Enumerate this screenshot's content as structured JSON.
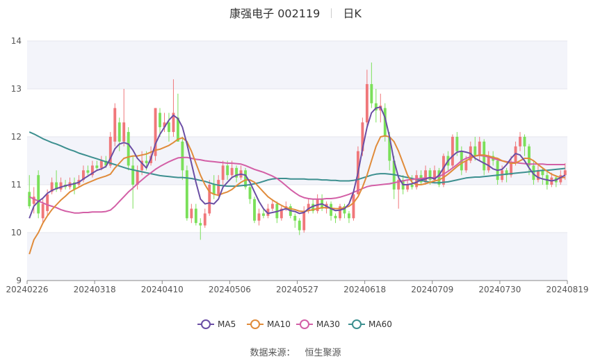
{
  "header": {
    "stock": "康强电子 002119",
    "period": "日K"
  },
  "footer": {
    "source_label": "数据来源：",
    "source_value": "恒生聚源"
  },
  "colors": {
    "up": "#f0777a",
    "down": "#7be05a",
    "ma5": "#6a4ea4",
    "ma10": "#e08b3a",
    "ma30": "#d35fa6",
    "ma60": "#3c8f8f",
    "grid_band": "#f3f4fa"
  },
  "chart_data": {
    "type": "candlestick",
    "ylim": [
      9,
      14
    ],
    "yticks": [
      9,
      10,
      11,
      12,
      13,
      14
    ],
    "xticks": [
      "20240226",
      "20240318",
      "20240410",
      "20240506",
      "20240527",
      "20240618",
      "20240709",
      "20240730",
      "20240819"
    ],
    "n_days": 120,
    "legend": [
      "MA5",
      "MA10",
      "MA30",
      "MA60"
    ],
    "candles": [
      [
        10.85,
        10.55,
        11.2,
        10.5
      ],
      [
        10.6,
        10.75,
        10.95,
        10.4
      ],
      [
        11.2,
        10.4,
        11.3,
        10.3
      ],
      [
        10.3,
        10.6,
        10.7,
        10.2
      ],
      [
        10.45,
        10.8,
        10.9,
        10.35
      ],
      [
        10.85,
        11.05,
        11.15,
        10.8
      ],
      [
        11.05,
        10.9,
        11.3,
        10.85
      ],
      [
        10.9,
        11.05,
        11.15,
        10.85
      ],
      [
        11.0,
        10.95,
        11.1,
        10.9
      ],
      [
        10.95,
        11.05,
        11.15,
        10.9
      ],
      [
        11.05,
        10.9,
        11.15,
        10.8
      ],
      [
        11.0,
        11.1,
        11.2,
        10.95
      ],
      [
        11.1,
        11.3,
        11.4,
        11.05
      ],
      [
        11.3,
        11.25,
        11.4,
        11.2
      ],
      [
        11.2,
        11.4,
        11.5,
        11.15
      ],
      [
        11.4,
        11.35,
        11.5,
        11.3
      ],
      [
        11.35,
        11.5,
        11.6,
        11.3
      ],
      [
        11.5,
        11.4,
        11.6,
        11.35
      ],
      [
        11.4,
        12.0,
        12.1,
        11.35
      ],
      [
        11.9,
        12.6,
        12.7,
        11.8
      ],
      [
        12.3,
        11.9,
        12.4,
        11.7
      ],
      [
        11.9,
        12.3,
        13.0,
        11.8
      ],
      [
        12.1,
        11.4,
        12.2,
        11.3
      ],
      [
        11.4,
        11.0,
        11.6,
        10.5
      ],
      [
        11.0,
        11.3,
        11.4,
        10.9
      ],
      [
        11.3,
        11.5,
        11.7,
        11.2
      ],
      [
        11.5,
        11.45,
        11.7,
        11.3
      ],
      [
        11.45,
        11.6,
        11.8,
        11.4
      ],
      [
        11.6,
        12.6,
        12.6,
        11.5
      ],
      [
        12.5,
        12.2,
        12.6,
        12.0
      ],
      [
        12.2,
        12.3,
        12.5,
        12.1
      ],
      [
        12.3,
        12.1,
        12.5,
        11.9
      ],
      [
        12.1,
        12.5,
        13.2,
        12.0
      ],
      [
        12.4,
        11.9,
        12.9,
        11.9
      ],
      [
        11.9,
        11.3,
        12.0,
        11.1
      ],
      [
        11.3,
        10.3,
        11.4,
        10.25
      ],
      [
        10.3,
        10.5,
        10.6,
        10.2
      ],
      [
        10.5,
        10.2,
        10.6,
        10.15
      ],
      [
        10.2,
        10.15,
        10.3,
        9.85
      ],
      [
        10.15,
        10.4,
        10.5,
        10.1
      ],
      [
        10.4,
        11.0,
        11.1,
        10.35
      ],
      [
        11.0,
        10.8,
        11.2,
        10.7
      ],
      [
        10.8,
        11.1,
        11.2,
        10.75
      ],
      [
        11.1,
        11.4,
        11.5,
        11.0
      ],
      [
        11.4,
        11.2,
        11.5,
        11.1
      ],
      [
        11.2,
        11.35,
        11.5,
        11.15
      ],
      [
        11.35,
        11.15,
        11.4,
        11.05
      ],
      [
        11.15,
        11.3,
        11.4,
        11.1
      ],
      [
        11.3,
        10.95,
        11.35,
        10.9
      ],
      [
        10.95,
        10.7,
        11.0,
        10.6
      ],
      [
        10.7,
        10.25,
        10.75,
        10.2
      ],
      [
        10.25,
        10.4,
        10.5,
        10.15
      ],
      [
        10.4,
        10.35,
        10.5,
        10.3
      ],
      [
        10.35,
        10.5,
        10.6,
        10.3
      ],
      [
        10.5,
        10.6,
        10.7,
        10.45
      ],
      [
        10.6,
        10.3,
        10.65,
        10.2
      ],
      [
        10.3,
        10.5,
        10.55,
        10.25
      ],
      [
        10.5,
        10.55,
        10.65,
        10.45
      ],
      [
        10.55,
        10.35,
        10.6,
        10.3
      ],
      [
        10.35,
        10.25,
        10.4,
        10.1
      ],
      [
        10.25,
        10.05,
        10.3,
        9.95
      ],
      [
        10.05,
        10.45,
        10.55,
        10.0
      ],
      [
        10.45,
        10.6,
        10.7,
        10.4
      ],
      [
        10.6,
        10.45,
        10.7,
        10.4
      ],
      [
        10.45,
        10.7,
        10.8,
        10.4
      ],
      [
        10.7,
        10.5,
        10.8,
        10.45
      ],
      [
        10.5,
        10.6,
        10.65,
        10.4
      ],
      [
        10.6,
        10.35,
        10.65,
        10.25
      ],
      [
        10.35,
        10.3,
        10.4,
        10.2
      ],
      [
        10.3,
        10.55,
        10.6,
        10.25
      ],
      [
        10.55,
        10.4,
        10.6,
        10.3
      ],
      [
        10.4,
        10.3,
        10.45,
        10.2
      ],
      [
        10.3,
        10.8,
        10.9,
        10.25
      ],
      [
        10.8,
        11.7,
        11.8,
        10.8
      ],
      [
        11.7,
        12.3,
        12.4,
        11.6
      ],
      [
        12.3,
        13.1,
        13.4,
        12.2
      ],
      [
        13.1,
        12.7,
        13.55,
        12.6
      ],
      [
        12.7,
        12.55,
        13.0,
        12.3
      ],
      [
        12.55,
        12.65,
        12.9,
        12.3
      ],
      [
        12.6,
        12.0,
        12.7,
        11.9
      ],
      [
        12.0,
        11.5,
        12.1,
        11.3
      ],
      [
        11.5,
        10.9,
        11.6,
        10.7
      ],
      [
        10.9,
        11.1,
        11.2,
        10.5
      ],
      [
        11.1,
        10.9,
        11.2,
        10.8
      ],
      [
        10.9,
        11.0,
        11.1,
        10.85
      ],
      [
        11.0,
        10.95,
        11.2,
        10.9
      ],
      [
        10.95,
        11.2,
        11.3,
        10.9
      ],
      [
        11.2,
        11.05,
        11.3,
        11.0
      ],
      [
        11.05,
        11.3,
        11.4,
        11.0
      ],
      [
        11.3,
        11.1,
        11.35,
        11.0
      ],
      [
        11.1,
        11.3,
        11.4,
        11.05
      ],
      [
        11.3,
        11.0,
        11.35,
        10.95
      ],
      [
        11.0,
        11.6,
        11.65,
        10.95
      ],
      [
        11.6,
        11.4,
        11.7,
        11.3
      ],
      [
        11.4,
        12.0,
        12.05,
        11.35
      ],
      [
        12.0,
        11.7,
        12.1,
        11.6
      ],
      [
        11.7,
        11.3,
        11.8,
        11.2
      ],
      [
        11.3,
        11.5,
        11.6,
        11.25
      ],
      [
        11.5,
        11.8,
        11.9,
        11.45
      ],
      [
        11.8,
        11.6,
        12.0,
        11.5
      ],
      [
        11.6,
        11.9,
        12.0,
        11.5
      ],
      [
        11.9,
        11.3,
        11.95,
        11.2
      ],
      [
        11.3,
        11.6,
        11.7,
        11.25
      ],
      [
        11.6,
        11.5,
        11.7,
        11.4
      ],
      [
        11.5,
        11.1,
        11.55,
        11.0
      ],
      [
        11.1,
        11.3,
        11.4,
        11.05
      ],
      [
        11.3,
        11.2,
        11.35,
        11.05
      ],
      [
        11.2,
        11.45,
        11.6,
        11.15
      ],
      [
        11.45,
        11.8,
        11.9,
        11.4
      ],
      [
        11.8,
        12.0,
        12.1,
        11.7
      ],
      [
        12.0,
        11.8,
        12.05,
        11.6
      ],
      [
        11.8,
        11.4,
        11.85,
        11.2
      ],
      [
        11.4,
        11.1,
        11.5,
        11.0
      ],
      [
        11.1,
        11.3,
        11.4,
        11.05
      ],
      [
        11.3,
        11.2,
        11.35,
        11.0
      ],
      [
        11.2,
        11.0,
        11.3,
        10.9
      ],
      [
        11.0,
        11.15,
        11.25,
        10.95
      ],
      [
        11.15,
        11.05,
        11.2,
        10.95
      ],
      [
        11.05,
        11.2,
        11.3,
        11.0
      ],
      [
        11.2,
        11.3,
        11.45,
        11.1
      ]
    ],
    "ma5": [
      10.3,
      10.55,
      10.65,
      10.72,
      10.82,
      10.88,
      10.92,
      10.95,
      10.98,
      11.0,
      11.02,
      11.05,
      11.12,
      11.18,
      11.24,
      11.3,
      11.33,
      11.38,
      11.55,
      11.75,
      11.85,
      11.88,
      11.85,
      11.72,
      11.55,
      11.45,
      11.35,
      11.55,
      11.85,
      12.05,
      12.2,
      12.35,
      12.45,
      12.38,
      12.2,
      11.85,
      11.45,
      11.05,
      10.7,
      10.6,
      10.62,
      10.6,
      10.7,
      10.95,
      11.05,
      11.15,
      11.2,
      11.22,
      11.2,
      11.05,
      10.85,
      10.65,
      10.5,
      10.4,
      10.42,
      10.44,
      10.47,
      10.5,
      10.46,
      10.44,
      10.4,
      10.42,
      10.5,
      10.55,
      10.58,
      10.6,
      10.55,
      10.5,
      10.46,
      10.47,
      10.5,
      10.6,
      10.85,
      11.25,
      11.75,
      12.2,
      12.5,
      12.6,
      12.62,
      12.4,
      12.0,
      11.5,
      11.15,
      11.0,
      11.0,
      11.02,
      11.05,
      11.1,
      11.12,
      11.15,
      11.12,
      11.2,
      11.35,
      11.5,
      11.6,
      11.68,
      11.7,
      11.68,
      11.65,
      11.55,
      11.5,
      11.45,
      11.4,
      11.33,
      11.3,
      11.32,
      11.42,
      11.55,
      11.65,
      11.62,
      11.5,
      11.35,
      11.22,
      11.15,
      11.12,
      11.1,
      11.08,
      11.1,
      11.15,
      11.2
    ],
    "ma10": [
      9.55,
      9.85,
      10.0,
      10.2,
      10.35,
      10.48,
      10.58,
      10.68,
      10.76,
      10.85,
      10.9,
      10.95,
      11.0,
      11.04,
      11.08,
      11.12,
      11.15,
      11.18,
      11.22,
      11.35,
      11.45,
      11.55,
      11.58,
      11.6,
      11.6,
      11.62,
      11.64,
      11.68,
      11.72,
      11.74,
      11.78,
      11.82,
      11.88,
      11.95,
      11.98,
      11.9,
      11.7,
      11.45,
      11.2,
      11.0,
      10.85,
      10.8,
      10.78,
      10.82,
      10.85,
      10.9,
      10.98,
      11.05,
      11.1,
      11.1,
      11.05,
      10.95,
      10.85,
      10.75,
      10.68,
      10.62,
      10.57,
      10.52,
      10.5,
      10.48,
      10.45,
      10.44,
      10.46,
      10.48,
      10.5,
      10.52,
      10.52,
      10.51,
      10.5,
      10.5,
      10.52,
      10.55,
      10.62,
      10.75,
      10.95,
      11.2,
      11.5,
      11.8,
      12.0,
      12.02,
      12.0,
      11.9,
      11.7,
      11.45,
      11.2,
      11.05,
      11.0,
      11.0,
      11.02,
      11.05,
      11.08,
      11.1,
      11.15,
      11.22,
      11.3,
      11.38,
      11.45,
      11.5,
      11.55,
      11.6,
      11.62,
      11.62,
      11.6,
      11.57,
      11.55,
      11.5,
      11.47,
      11.45,
      11.45,
      11.5,
      11.55,
      11.55,
      11.5,
      11.42,
      11.35,
      11.28,
      11.22,
      11.18,
      11.15,
      11.15
    ],
    "ma30": [
      10.75,
      10.7,
      10.66,
      10.62,
      10.58,
      10.55,
      10.52,
      10.48,
      10.45,
      10.43,
      10.41,
      10.41,
      10.42,
      10.42,
      10.43,
      10.43,
      10.43,
      10.44,
      10.47,
      10.55,
      10.65,
      10.75,
      10.85,
      10.93,
      11.02,
      11.1,
      11.18,
      11.25,
      11.32,
      11.38,
      11.43,
      11.48,
      11.52,
      11.56,
      11.57,
      11.57,
      11.55,
      11.53,
      11.52,
      11.5,
      11.49,
      11.48,
      11.47,
      11.46,
      11.45,
      11.45,
      11.44,
      11.43,
      11.4,
      11.36,
      11.32,
      11.29,
      11.26,
      11.22,
      11.18,
      11.13,
      11.06,
      10.98,
      10.9,
      10.83,
      10.77,
      10.73,
      10.71,
      10.7,
      10.7,
      10.7,
      10.71,
      10.71,
      10.72,
      10.74,
      10.77,
      10.8,
      10.84,
      10.88,
      10.92,
      10.96,
      10.98,
      10.99,
      11.0,
      11.01,
      11.02,
      11.04,
      11.06,
      11.08,
      11.1,
      11.11,
      11.12,
      11.13,
      11.14,
      11.14,
      11.15,
      11.17,
      11.22,
      11.28,
      11.35,
      11.42,
      11.5,
      11.55,
      11.58,
      11.6,
      11.61,
      11.6,
      11.58,
      11.55,
      11.52,
      11.5,
      11.48,
      11.47,
      11.46,
      11.45,
      11.44,
      11.43,
      11.43,
      11.43,
      11.43,
      11.42,
      11.42,
      11.42,
      11.42,
      11.42
    ],
    "ma60": [
      12.1,
      12.06,
      12.01,
      11.96,
      11.92,
      11.88,
      11.85,
      11.81,
      11.77,
      11.73,
      11.7,
      11.66,
      11.63,
      11.6,
      11.57,
      11.54,
      11.51,
      11.48,
      11.45,
      11.42,
      11.39,
      11.36,
      11.33,
      11.31,
      11.29,
      11.27,
      11.25,
      11.23,
      11.21,
      11.19,
      11.18,
      11.17,
      11.16,
      11.15,
      11.15,
      11.14,
      11.13,
      11.11,
      11.09,
      11.07,
      11.04,
      11.01,
      10.99,
      10.98,
      10.97,
      10.97,
      10.97,
      10.98,
      10.99,
      11.0,
      11.02,
      11.04,
      11.07,
      11.1,
      11.12,
      11.13,
      11.13,
      11.13,
      11.12,
      11.12,
      11.12,
      11.12,
      11.11,
      11.11,
      11.11,
      11.1,
      11.1,
      11.09,
      11.09,
      11.08,
      11.08,
      11.08,
      11.09,
      11.11,
      11.14,
      11.17,
      11.2,
      11.22,
      11.23,
      11.23,
      11.22,
      11.21,
      11.19,
      11.17,
      11.15,
      11.13,
      11.11,
      11.09,
      11.07,
      11.05,
      11.04,
      11.04,
      11.05,
      11.06,
      11.08,
      11.1,
      11.12,
      11.14,
      11.15,
      11.16,
      11.16,
      11.17,
      11.18,
      11.19,
      11.2,
      11.21,
      11.22,
      11.23,
      11.24,
      11.25,
      11.26,
      11.27,
      11.28,
      11.29,
      11.3,
      11.3,
      11.31,
      11.32,
      11.33,
      11.34
    ]
  }
}
